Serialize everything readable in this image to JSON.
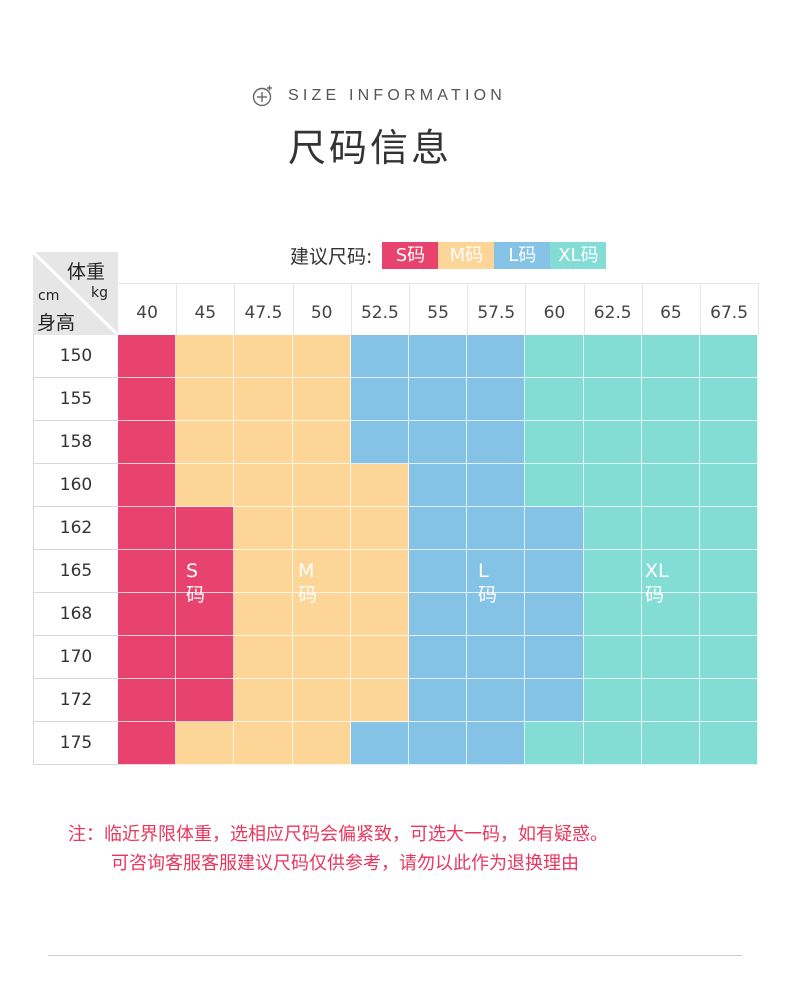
{
  "header": {
    "eyebrow": "SIZE INFORMATION",
    "eyebrow_icon": "plus-circle-icon",
    "title": "尺码信息"
  },
  "legend": {
    "label": "建议尺码:",
    "sizes": [
      {
        "label": "S码",
        "color": "#e8436e"
      },
      {
        "label": "M码",
        "color": "#fdd597"
      },
      {
        "label": "L码",
        "color": "#84c3e6"
      },
      {
        "label": "XL码",
        "color": "#84ddd5"
      }
    ]
  },
  "table": {
    "corner": {
      "weight": "体重",
      "weight_unit": "kg",
      "height_unit": "cm",
      "height": "身高"
    },
    "weights": [
      "40",
      "45",
      "47.5",
      "50",
      "52.5",
      "55",
      "57.5",
      "60",
      "62.5",
      "65",
      "67.5"
    ],
    "heights": [
      "150",
      "155",
      "158",
      "160",
      "162",
      "165",
      "168",
      "170",
      "172",
      "175"
    ],
    "size_grid": [
      [
        "S",
        "M",
        "M",
        "M",
        "L",
        "L",
        "L",
        "XL",
        "XL",
        "XL",
        "XL"
      ],
      [
        "S",
        "M",
        "M",
        "M",
        "L",
        "L",
        "L",
        "XL",
        "XL",
        "XL",
        "XL"
      ],
      [
        "S",
        "M",
        "M",
        "M",
        "L",
        "L",
        "L",
        "XL",
        "XL",
        "XL",
        "XL"
      ],
      [
        "S",
        "M",
        "M",
        "M",
        "M",
        "L",
        "L",
        "XL",
        "XL",
        "XL",
        "XL"
      ],
      [
        "S",
        "S",
        "M",
        "M",
        "M",
        "L",
        "L",
        "L",
        "XL",
        "XL",
        "XL"
      ],
      [
        "S",
        "S",
        "M",
        "M",
        "M",
        "L",
        "L",
        "L",
        "XL",
        "XL",
        "XL"
      ],
      [
        "S",
        "S",
        "M",
        "M",
        "M",
        "L",
        "L",
        "L",
        "XL",
        "XL",
        "XL"
      ],
      [
        "S",
        "S",
        "M",
        "M",
        "M",
        "L",
        "L",
        "L",
        "XL",
        "XL",
        "XL"
      ],
      [
        "S",
        "S",
        "M",
        "M",
        "M",
        "L",
        "L",
        "L",
        "XL",
        "XL",
        "XL"
      ],
      [
        "S",
        "M",
        "M",
        "M",
        "L",
        "L",
        "L",
        "XL",
        "XL",
        "XL",
        "XL"
      ]
    ],
    "zone_labels": [
      "S码",
      "M码",
      "L码",
      "XL码"
    ]
  },
  "notes": {
    "line1": "注：临近界限体重，选相应尺码会偏紧致，可选大一码，如有疑惑。",
    "line2": "可咨询客服客服建议尺码仅供参考，请勿以此作为退换理由"
  }
}
